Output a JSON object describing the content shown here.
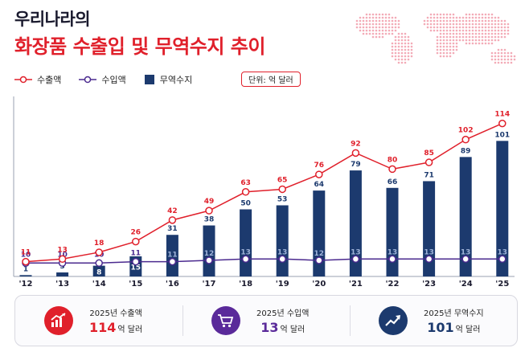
{
  "header": {
    "title_line1": "우리나라의",
    "title_line2": "화장품 수출입 및 무역수지 추이"
  },
  "legend": {
    "export_label": "수출액",
    "import_label": "수입액",
    "balance_label": "무역수지",
    "unit_label": "단위: 억 달러"
  },
  "colors": {
    "export": "#e0202b",
    "import": "#4b2a8f",
    "balance": "#1c3a6e",
    "title_red": "#e0202b"
  },
  "chart_data": {
    "type": "bar",
    "categories": [
      "'12",
      "'13",
      "'14",
      "'15",
      "'16",
      "'17",
      "'18",
      "'19",
      "'20",
      "'21",
      "'22",
      "'23",
      "'24",
      "'25"
    ],
    "series": [
      {
        "name": "수출액",
        "kind": "line",
        "values": [
          11,
          13,
          18,
          26,
          42,
          49,
          63,
          65,
          76,
          92,
          80,
          85,
          102,
          114
        ]
      },
      {
        "name": "수입액",
        "kind": "line",
        "values": [
          10,
          10,
          10,
          11,
          11,
          12,
          13,
          13,
          12,
          13,
          13,
          13,
          13,
          13
        ]
      },
      {
        "name": "무역수지",
        "kind": "bar",
        "values": [
          1,
          3,
          8,
          15,
          31,
          38,
          50,
          53,
          64,
          79,
          66,
          71,
          89,
          101
        ]
      }
    ],
    "ylim": [
      0,
      125
    ],
    "unit": "억 달러",
    "grid": false
  },
  "cards": [
    {
      "label": "2025년 수출액",
      "value": "114",
      "unit": "억 달러",
      "icon": "chart-up-icon",
      "color": "#e0202b"
    },
    {
      "label": "2025년 수입액",
      "value": "13",
      "unit": "억 달러",
      "icon": "cart-icon",
      "color": "#5a2a9a"
    },
    {
      "label": "2025년 무역수지",
      "value": "101",
      "unit": "억 달러",
      "icon": "trend-arrow-icon",
      "color": "#1c3a6e"
    }
  ]
}
